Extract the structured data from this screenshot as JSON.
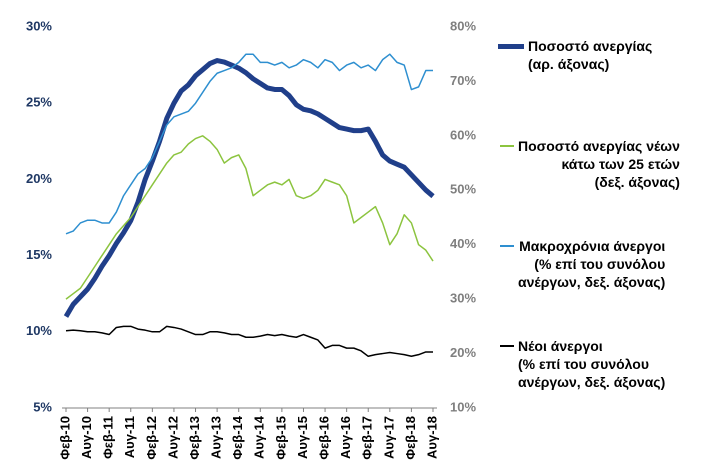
{
  "chart_data": {
    "type": "line",
    "categories": [
      "Φεβ-10",
      null,
      null,
      "Αυγ-10",
      null,
      null,
      "Φεβ-11",
      null,
      null,
      "Αυγ-11",
      null,
      null,
      "Φεβ-12",
      null,
      null,
      "Αυγ-12",
      null,
      null,
      "Φεβ-13",
      null,
      null,
      "Αυγ-13",
      null,
      null,
      "Φεβ-14",
      null,
      null,
      "Αυγ-14",
      null,
      null,
      "Φεβ-15",
      null,
      null,
      "Αυγ-15",
      null,
      null,
      "Φεβ-16",
      null,
      null,
      "Αυγ-16",
      null,
      null,
      "Φεβ-17",
      null,
      null,
      "Αυγ-17",
      null,
      null,
      "Φεβ-18",
      null,
      null,
      "Αυγ-18"
    ],
    "series": [
      {
        "name": "Ποσοστό ανεργίας\n(αρ. άξονας)",
        "color": "#203f8a",
        "values": [
          11.0,
          11.8,
          12.3,
          12.8,
          13.5,
          14.3,
          15.0,
          15.8,
          16.5,
          17.3,
          18.5,
          20.0,
          21.2,
          22.5,
          24.0,
          25.0,
          25.8,
          26.2,
          26.8,
          27.2,
          27.6,
          27.8,
          27.7,
          27.5,
          27.3,
          27.0,
          26.6,
          26.3,
          26.0,
          25.9,
          25.9,
          25.5,
          24.9,
          24.6,
          24.5,
          24.3,
          24.0,
          23.7,
          23.4,
          23.3,
          23.2,
          23.2,
          23.3,
          22.5,
          21.6,
          21.2,
          21.0,
          20.8,
          20.3,
          19.8,
          19.3,
          18.9
        ]
      },
      {
        "name": "Ποσοστό ανεργίας νέων\nκάτω των 25 ετών\n(δεξ. άξονας)",
        "color": "#8cc43f",
        "axis": "y2",
        "values": [
          30,
          31,
          32,
          34,
          36,
          38,
          40,
          42,
          43.5,
          45,
          47,
          49,
          51,
          53,
          55,
          56.5,
          57,
          58.5,
          59.5,
          60,
          59,
          57.5,
          55,
          56,
          56.5,
          54,
          49,
          50,
          51,
          51.5,
          51,
          52,
          49,
          48.5,
          49,
          50,
          52,
          51.5,
          51,
          49,
          44,
          45,
          46,
          47,
          44,
          40,
          42,
          45.5,
          44,
          40,
          39,
          37
        ]
      },
      {
        "name": "Μακροχρόνια άνεργοι\n(% επί του συνόλου\nανέργων, δεξ. άξονας)",
        "color": "#2e8fd0",
        "axis": "y2",
        "values": [
          42,
          42.5,
          44,
          44.5,
          44.5,
          44,
          44,
          46,
          49,
          51,
          53,
          54,
          56,
          59,
          62,
          63.5,
          64,
          64.5,
          66,
          68,
          70,
          71.5,
          72,
          72.5,
          73.5,
          75,
          75,
          73.5,
          73.5,
          73,
          73.5,
          72.5,
          73,
          74,
          73.5,
          72.5,
          74,
          73.5,
          72,
          73,
          73.5,
          72.5,
          73,
          72,
          74,
          75,
          73.5,
          73,
          68.5,
          69,
          72,
          72
        ]
      },
      {
        "name": "Νέοι άνεργοι\n(% επί του συνόλου\nανέργων, δεξ. άξονας)",
        "color": "#000000",
        "axis": "y2",
        "values": [
          24.2,
          24.3,
          24.2,
          24,
          24,
          23.8,
          23.5,
          24.8,
          25,
          25,
          24.5,
          24.3,
          24,
          24,
          25,
          24.8,
          24.5,
          24,
          23.5,
          23.5,
          24,
          24,
          23.8,
          23.5,
          23.5,
          23,
          23,
          23.2,
          23.5,
          23.3,
          23.5,
          23.2,
          23,
          23.5,
          23,
          22.5,
          21,
          21.5,
          21.5,
          21,
          21,
          20.5,
          19.5,
          19.8,
          20,
          20.2,
          20,
          19.8,
          19.5,
          19.8,
          20.3,
          20.3
        ]
      }
    ],
    "ylim": [
      5,
      30
    ],
    "yticks": [
      {
        "value": 5,
        "label": "5%"
      },
      {
        "value": 10,
        "label": "10%"
      },
      {
        "value": 15,
        "label": "15%"
      },
      {
        "value": 20,
        "label": "20%"
      },
      {
        "value": 25,
        "label": "25%"
      },
      {
        "value": 30,
        "label": "30%"
      }
    ],
    "y2lim": [
      10,
      80
    ],
    "y2ticks": [
      {
        "value": 10,
        "label": "10%"
      },
      {
        "value": 20,
        "label": "20%"
      },
      {
        "value": 30,
        "label": "30%"
      },
      {
        "value": 40,
        "label": "40%"
      },
      {
        "value": 50,
        "label": "50%"
      },
      {
        "value": 60,
        "label": "60%"
      },
      {
        "value": 70,
        "label": "70%"
      },
      {
        "value": 80,
        "label": "80%"
      }
    ],
    "grid": false
  }
}
